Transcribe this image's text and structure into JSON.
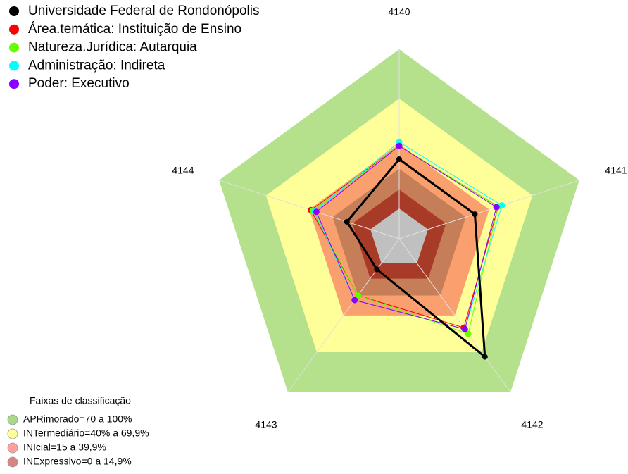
{
  "chart_data": {
    "type": "radar",
    "categories": [
      "4140",
      "4141",
      "4142",
      "4143",
      "4144"
    ],
    "ylim": [
      0,
      100
    ],
    "series": [
      {
        "name": "Área.temática: Instituição de Ensino",
        "color": "#ff0000",
        "values": [
          49,
          55,
          58,
          37,
          49
        ]
      },
      {
        "name": "Natureza.Jurídica: Autarquia",
        "color": "#66ff00",
        "values": [
          49,
          55,
          62,
          37,
          48
        ]
      },
      {
        "name": "Administração: Indireta",
        "color": "#00ffff",
        "values": [
          51,
          57,
          59,
          40,
          47
        ]
      },
      {
        "name": "Poder: Executivo",
        "color": "#8800ff",
        "values": [
          49,
          54,
          59,
          40,
          46
        ]
      },
      {
        "name": "Universidade Federal de Rondonópolis",
        "color": "#000000",
        "values": [
          42,
          42,
          77,
          20,
          29
        ]
      }
    ],
    "band_legend": {
      "title": "Faixas de classificação",
      "items": [
        {
          "label": "APRimorado=70 a 100%",
          "color": "#a8d88a"
        },
        {
          "label": "INTermediário=40% a 69,9%",
          "color": "#ffff99"
        },
        {
          "label": "INIcial=15 a 39,9%",
          "color": "#ff9f9f"
        },
        {
          "label": "INExpressivo=0 a 14,9%",
          "color": "#d98383"
        }
      ]
    }
  }
}
